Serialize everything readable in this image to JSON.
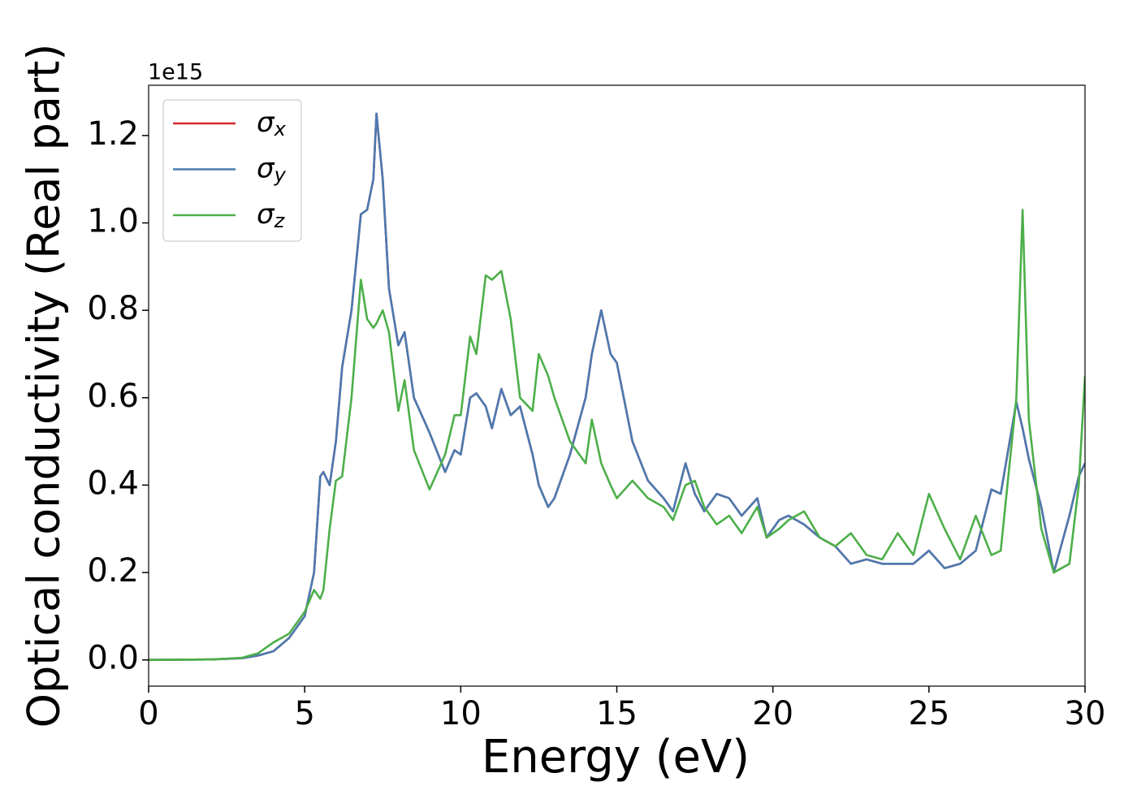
{
  "chart_data": {
    "type": "line",
    "xlabel": "Energy (eV)",
    "ylabel": "Optical conductivity (Real part)",
    "y_offset_label": "1e15",
    "x": [
      0,
      2,
      3,
      3.5,
      4,
      4.5,
      5,
      5.3,
      5.5,
      5.6,
      5.8,
      6,
      6.2,
      6.5,
      6.8,
      7,
      7.2,
      7.3,
      7.5,
      7.7,
      8,
      8.2,
      8.5,
      9,
      9.5,
      9.8,
      10,
      10.3,
      10.5,
      10.8,
      11,
      11.3,
      11.6,
      11.9,
      12.3,
      12.5,
      12.8,
      13,
      13.5,
      14,
      14.2,
      14.5,
      14.8,
      15,
      15.5,
      16,
      16.5,
      16.8,
      17.2,
      17.5,
      17.8,
      18.2,
      18.6,
      19,
      19.5,
      19.8,
      20.2,
      20.5,
      21,
      21.5,
      22,
      22.5,
      23,
      23.5,
      24,
      24.5,
      25,
      25.5,
      26,
      26.5,
      27,
      27.3,
      27.8,
      28,
      28.2,
      28.6,
      29,
      29.5,
      29.8,
      30
    ],
    "series": [
      {
        "name": "σx",
        "color": "#d62728",
        "values": [
          0,
          0.001,
          0.004,
          0.01,
          0.02,
          0.05,
          0.1,
          0.2,
          0.42,
          0.43,
          0.4,
          0.5,
          0.67,
          0.8,
          1.02,
          1.03,
          1.1,
          1.25,
          1.1,
          0.85,
          0.72,
          0.75,
          0.6,
          0.52,
          0.43,
          0.48,
          0.47,
          0.6,
          0.61,
          0.58,
          0.53,
          0.62,
          0.56,
          0.58,
          0.47,
          0.4,
          0.35,
          0.37,
          0.47,
          0.6,
          0.7,
          0.8,
          0.7,
          0.68,
          0.5,
          0.41,
          0.37,
          0.34,
          0.45,
          0.38,
          0.34,
          0.38,
          0.37,
          0.33,
          0.37,
          0.28,
          0.32,
          0.33,
          0.31,
          0.28,
          0.26,
          0.22,
          0.23,
          0.22,
          0.22,
          0.22,
          0.25,
          0.21,
          0.22,
          0.25,
          0.39,
          0.38,
          0.59,
          0.53,
          0.46,
          0.35,
          0.2,
          0.33,
          0.42,
          0.45
        ]
      },
      {
        "name": "σy",
        "color": "#4a7ab0",
        "values": [
          0,
          0.001,
          0.004,
          0.01,
          0.02,
          0.05,
          0.1,
          0.2,
          0.42,
          0.43,
          0.4,
          0.5,
          0.67,
          0.8,
          1.02,
          1.03,
          1.1,
          1.25,
          1.1,
          0.85,
          0.72,
          0.75,
          0.6,
          0.52,
          0.43,
          0.48,
          0.47,
          0.6,
          0.61,
          0.58,
          0.53,
          0.62,
          0.56,
          0.58,
          0.47,
          0.4,
          0.35,
          0.37,
          0.47,
          0.6,
          0.7,
          0.8,
          0.7,
          0.68,
          0.5,
          0.41,
          0.37,
          0.34,
          0.45,
          0.38,
          0.34,
          0.38,
          0.37,
          0.33,
          0.37,
          0.28,
          0.32,
          0.33,
          0.31,
          0.28,
          0.26,
          0.22,
          0.23,
          0.22,
          0.22,
          0.22,
          0.25,
          0.21,
          0.22,
          0.25,
          0.39,
          0.38,
          0.59,
          0.53,
          0.46,
          0.35,
          0.2,
          0.33,
          0.42,
          0.45
        ]
      },
      {
        "name": "σz",
        "color": "#4daf4a",
        "values": [
          0,
          0.001,
          0.005,
          0.015,
          0.04,
          0.06,
          0.11,
          0.16,
          0.14,
          0.16,
          0.3,
          0.41,
          0.42,
          0.6,
          0.87,
          0.78,
          0.76,
          0.77,
          0.8,
          0.75,
          0.57,
          0.64,
          0.48,
          0.39,
          0.47,
          0.56,
          0.56,
          0.74,
          0.7,
          0.88,
          0.87,
          0.89,
          0.78,
          0.6,
          0.57,
          0.7,
          0.65,
          0.6,
          0.5,
          0.45,
          0.55,
          0.45,
          0.4,
          0.37,
          0.41,
          0.37,
          0.35,
          0.32,
          0.4,
          0.41,
          0.35,
          0.31,
          0.33,
          0.29,
          0.35,
          0.28,
          0.3,
          0.32,
          0.34,
          0.28,
          0.26,
          0.29,
          0.24,
          0.23,
          0.29,
          0.24,
          0.38,
          0.3,
          0.23,
          0.33,
          0.24,
          0.25,
          0.6,
          1.03,
          0.55,
          0.3,
          0.2,
          0.22,
          0.4,
          0.65
        ]
      }
    ],
    "xlim": [
      0,
      30
    ],
    "xticks": [
      0,
      5,
      10,
      15,
      20,
      25,
      30
    ],
    "ylim": [
      -0.06,
      1.315
    ],
    "yticks": [
      {
        "value": 0,
        "label": "0.0"
      },
      {
        "value": 0.2,
        "label": "0.2"
      },
      {
        "value": 0.4,
        "label": "0.4"
      },
      {
        "value": 0.6,
        "label": "0.6"
      },
      {
        "value": 0.8,
        "label": "0.8"
      },
      {
        "value": 1,
        "label": "1.0"
      },
      {
        "value": 1.2,
        "label": "1.2"
      }
    ],
    "legend": "upper left",
    "grid": false
  }
}
